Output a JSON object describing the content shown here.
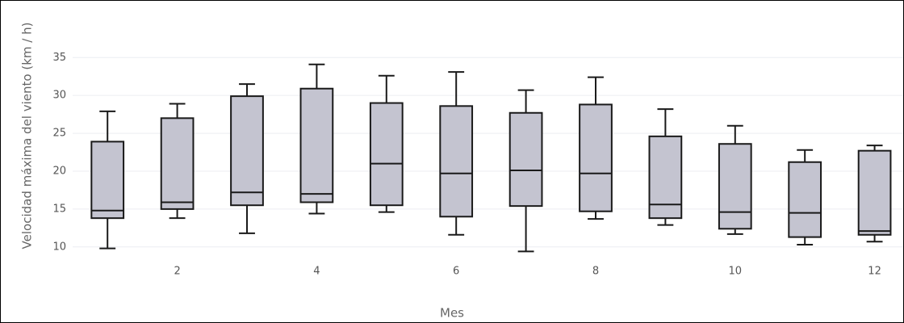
{
  "chart_data": {
    "type": "box",
    "xlabel": "Mes",
    "ylabel": "Velocidad máxima del viento (km / h)",
    "x": [
      1,
      2,
      3,
      4,
      5,
      6,
      7,
      8,
      9,
      10,
      11,
      12
    ],
    "lowerfence": [
      9.8,
      13.8,
      11.8,
      14.4,
      14.6,
      11.6,
      9.4,
      13.7,
      12.9,
      11.7,
      10.3,
      10.7
    ],
    "q1": [
      13.8,
      15.0,
      15.5,
      15.9,
      15.5,
      14.0,
      15.4,
      14.7,
      13.8,
      12.4,
      11.3,
      11.6
    ],
    "median": [
      14.8,
      15.9,
      17.2,
      17.0,
      21.0,
      19.7,
      20.1,
      19.7,
      15.6,
      14.6,
      14.5,
      12.1
    ],
    "q3": [
      23.9,
      27.0,
      29.9,
      30.9,
      29.0,
      28.6,
      27.7,
      28.8,
      24.6,
      23.6,
      21.2,
      22.7
    ],
    "upperfence": [
      27.9,
      28.9,
      31.5,
      34.1,
      32.6,
      33.1,
      30.7,
      32.4,
      28.2,
      26.0,
      22.8,
      23.4
    ],
    "color": "#c4c4d0",
    "line_color": "#1a1a1a",
    "xlim": [
      0.5,
      12.41
    ],
    "ylim": [
      8.7,
      39.4
    ],
    "xticks": [
      2,
      4,
      6,
      8,
      10,
      12
    ],
    "yticks": [
      10,
      15,
      20,
      25,
      30,
      35
    ],
    "grid": true
  }
}
